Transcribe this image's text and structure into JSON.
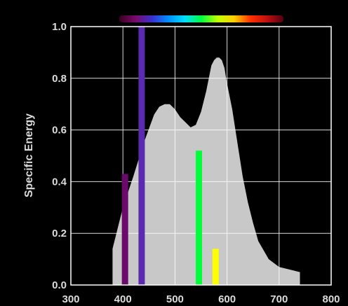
{
  "chart_data": {
    "type": "area",
    "title": "",
    "xlabel": "",
    "ylabel": "Specific Energy",
    "xlim": [
      300,
      800
    ],
    "ylim": [
      0,
      1.0
    ],
    "x_ticks": [
      "300",
      "400",
      "500",
      "600",
      "700",
      "800"
    ],
    "y_ticks": [
      "0.0",
      "0.2",
      "0.4",
      "0.6",
      "0.8",
      "1.0"
    ],
    "grid": true,
    "colors": {
      "background": "#000000",
      "curve_fill": "#c8c8c8",
      "grid": "#ffffff",
      "axis": "#ffffff",
      "tick_text": "#dcdcdc"
    },
    "curve": {
      "x": [
        380,
        380,
        400,
        420,
        440,
        460,
        470,
        480,
        490,
        500,
        510,
        520,
        530,
        540,
        550,
        560,
        565,
        570,
        575,
        580,
        585,
        590,
        595,
        600,
        610,
        620,
        630,
        640,
        650,
        660,
        680,
        700,
        720,
        740,
        740
      ],
      "y": [
        0.0,
        0.14,
        0.3,
        0.42,
        0.55,
        0.66,
        0.69,
        0.7,
        0.7,
        0.68,
        0.65,
        0.63,
        0.61,
        0.62,
        0.67,
        0.75,
        0.8,
        0.85,
        0.87,
        0.88,
        0.88,
        0.87,
        0.84,
        0.78,
        0.68,
        0.55,
        0.42,
        0.32,
        0.24,
        0.17,
        0.1,
        0.07,
        0.06,
        0.05,
        0.0
      ]
    },
    "lines": [
      {
        "x": 404,
        "value": 0.43,
        "color": "#6a0a6a"
      },
      {
        "x": 436,
        "value": 1.0,
        "color": "#5a2ab0"
      },
      {
        "x": 546,
        "value": 0.52,
        "color": "#00ff3a"
      },
      {
        "x": 578,
        "value": 0.14,
        "color": "#ffff00"
      }
    ],
    "spectrum_bar": {
      "x_range": [
        300,
        800
      ],
      "stops": [
        "#3a0020",
        "#7a0a6a",
        "#3a30d0",
        "#0090ff",
        "#00e0ff",
        "#00ff40",
        "#c0ff00",
        "#ffd000",
        "#ff3000",
        "#c01010",
        "#500010"
      ]
    }
  }
}
